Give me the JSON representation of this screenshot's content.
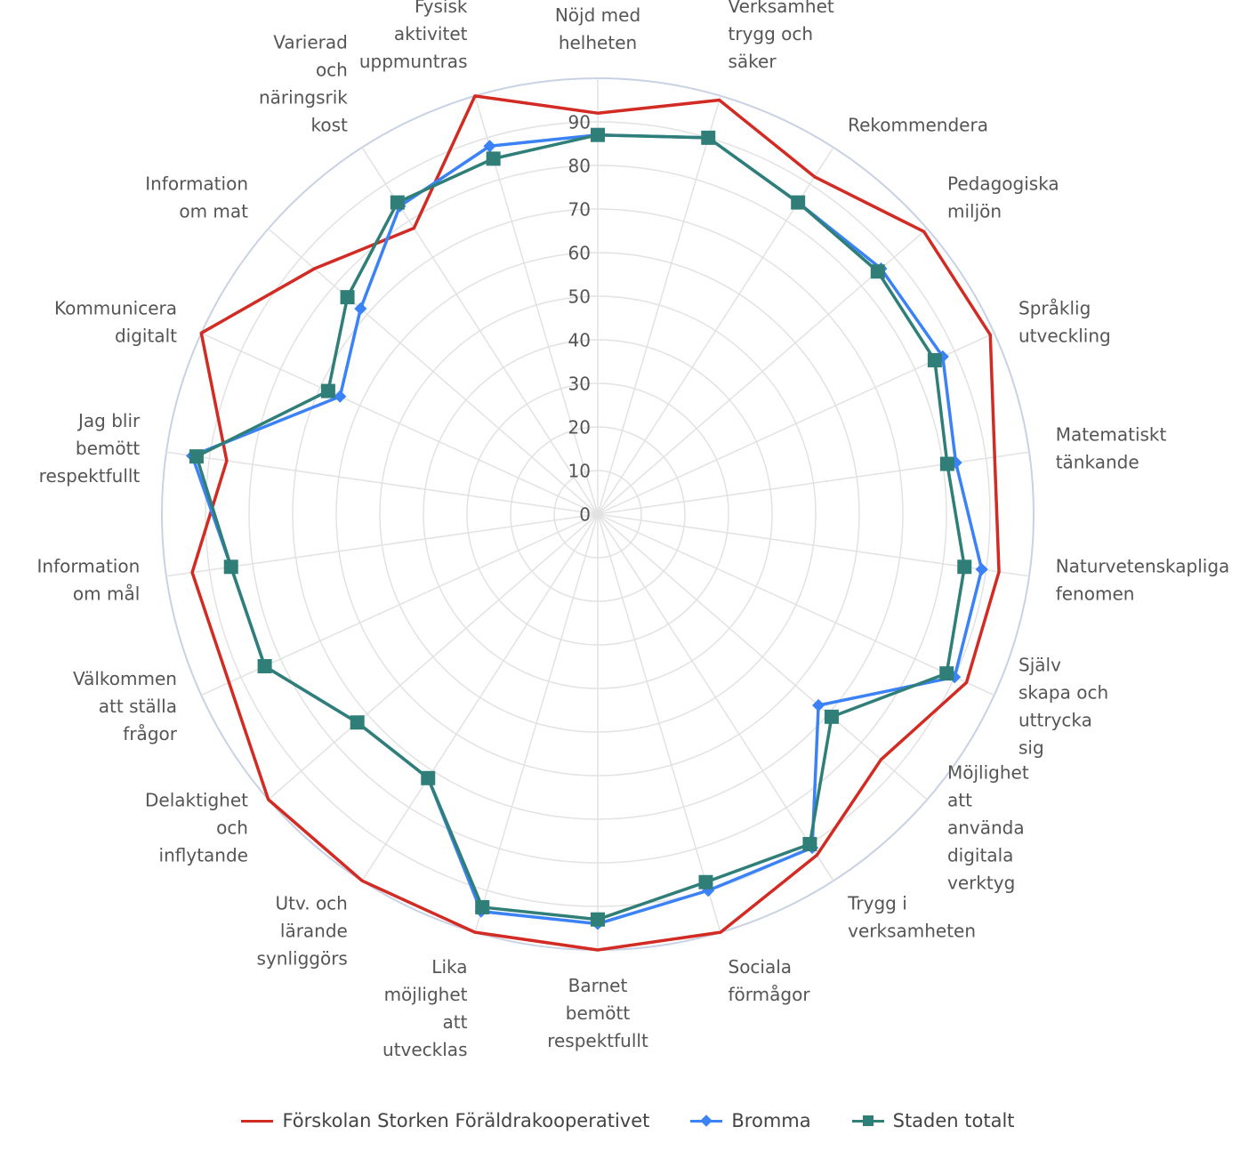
{
  "chart_data": {
    "type": "radar",
    "rlim": [
      0,
      100
    ],
    "ticks": [
      0,
      10,
      20,
      30,
      40,
      50,
      60,
      70,
      80,
      90
    ],
    "grid": true,
    "legend_position": "bottom",
    "categories": [
      [
        "Nöjd med",
        "helheten"
      ],
      [
        "Verksamhet",
        "trygg och",
        "säker"
      ],
      [
        "Rekommendera"
      ],
      [
        "Pedagogiska",
        "miljön"
      ],
      [
        "Språklig",
        "utveckling"
      ],
      [
        "Matematiskt",
        "tänkande"
      ],
      [
        "Naturvetenskapliga",
        "fenomen"
      ],
      [
        "Själv",
        "skapa och",
        "uttrycka",
        "sig"
      ],
      [
        "Möjlighet",
        "att",
        "använda",
        "digitala",
        "verktyg"
      ],
      [
        "Trygg i",
        "verksamheten"
      ],
      [
        "Sociala",
        "förmågor"
      ],
      [
        "Barnet",
        "bemött",
        "respektfullt"
      ],
      [
        "Lika",
        "möjlighet",
        "att",
        "utvecklas"
      ],
      [
        "Utv. och",
        "lärande",
        "synliggörs"
      ],
      [
        "Delaktighet",
        "och",
        "inflytande"
      ],
      [
        "Välkommen",
        "att ställa",
        "frågor"
      ],
      [
        "Information",
        "om mål"
      ],
      [
        "Jag blir",
        "bemött",
        "respektfullt"
      ],
      [
        "Kommunicera",
        "digitalt"
      ],
      [
        "Information",
        "om mat"
      ],
      [
        "Varierad",
        "och",
        "näringsrik",
        "kost"
      ],
      [
        "Fysisk",
        "aktivitet",
        "uppmuntras"
      ]
    ],
    "series": [
      {
        "name": "Förskolan Storken Föräldrakooperativet",
        "color": "#d22b23",
        "marker": "none",
        "values": [
          92,
          99,
          92,
          99,
          99,
          92,
          93,
          93,
          86,
          93,
          100,
          100,
          100,
          100,
          100,
          93,
          94,
          86,
          100,
          86,
          78,
          100
        ]
      },
      {
        "name": "Bromma",
        "color": "#3b82f6",
        "marker": "diamond",
        "values": [
          87,
          90,
          85,
          86,
          87,
          83,
          89,
          90,
          67,
          91,
          90,
          94,
          95,
          72,
          73,
          84,
          85,
          94,
          65,
          72,
          84,
          88
        ]
      },
      {
        "name": "Staden totalt",
        "color": "#2f7f78",
        "marker": "square",
        "values": [
          87,
          90,
          85,
          85,
          85,
          81,
          85,
          88,
          71,
          90,
          88,
          93,
          94,
          72,
          73,
          84,
          85,
          93,
          68,
          76,
          85,
          85
        ]
      }
    ]
  }
}
